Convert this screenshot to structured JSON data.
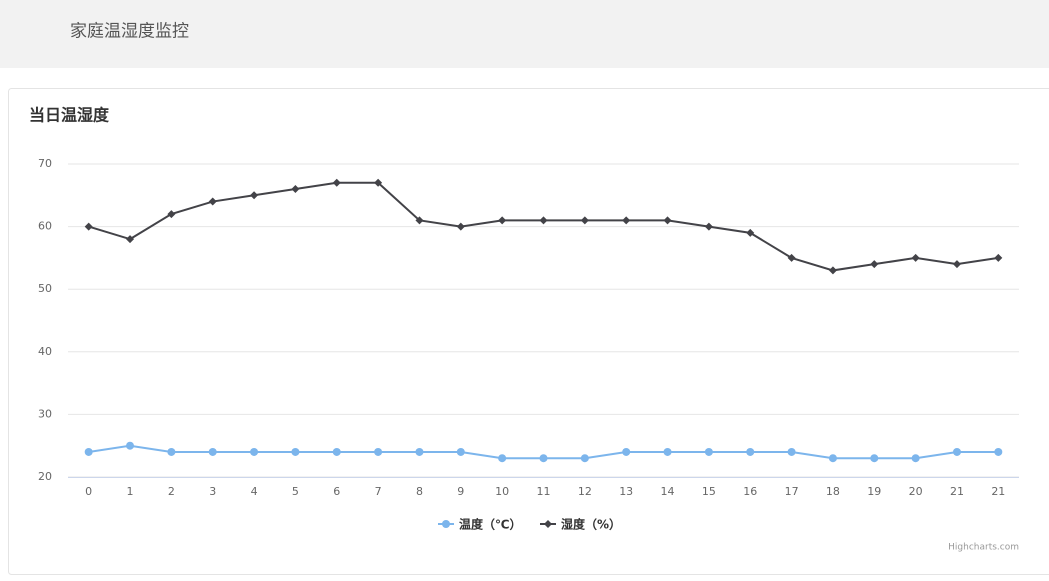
{
  "header": {
    "title": "家庭温湿度监控"
  },
  "chart_data": {
    "type": "line",
    "title": "当日温湿度",
    "categories": [
      "0",
      "1",
      "2",
      "3",
      "4",
      "5",
      "6",
      "7",
      "8",
      "9",
      "10",
      "11",
      "12",
      "13",
      "14",
      "15",
      "16",
      "17",
      "18",
      "19",
      "20",
      "21",
      "21"
    ],
    "series": [
      {
        "name": "温度（℃）",
        "color": "#7cb5ec",
        "marker": "circle",
        "values": [
          24,
          25,
          24,
          24,
          24,
          24,
          24,
          24,
          24,
          24,
          23,
          23,
          23,
          24,
          24,
          24,
          24,
          24,
          23,
          23,
          23,
          24,
          24
        ]
      },
      {
        "name": "湿度（%）",
        "color": "#434348",
        "marker": "diamond",
        "values": [
          60,
          58,
          62,
          64,
          65,
          66,
          67,
          67,
          61,
          60,
          61,
          61,
          61,
          61,
          61,
          60,
          59,
          55,
          53,
          54,
          55,
          54,
          55
        ]
      }
    ],
    "ylim": [
      20,
      70
    ],
    "yticks": [
      20,
      30,
      40,
      50,
      60,
      70
    ],
    "grid": true,
    "legend": "bottom",
    "credits": "Highcharts.com"
  }
}
